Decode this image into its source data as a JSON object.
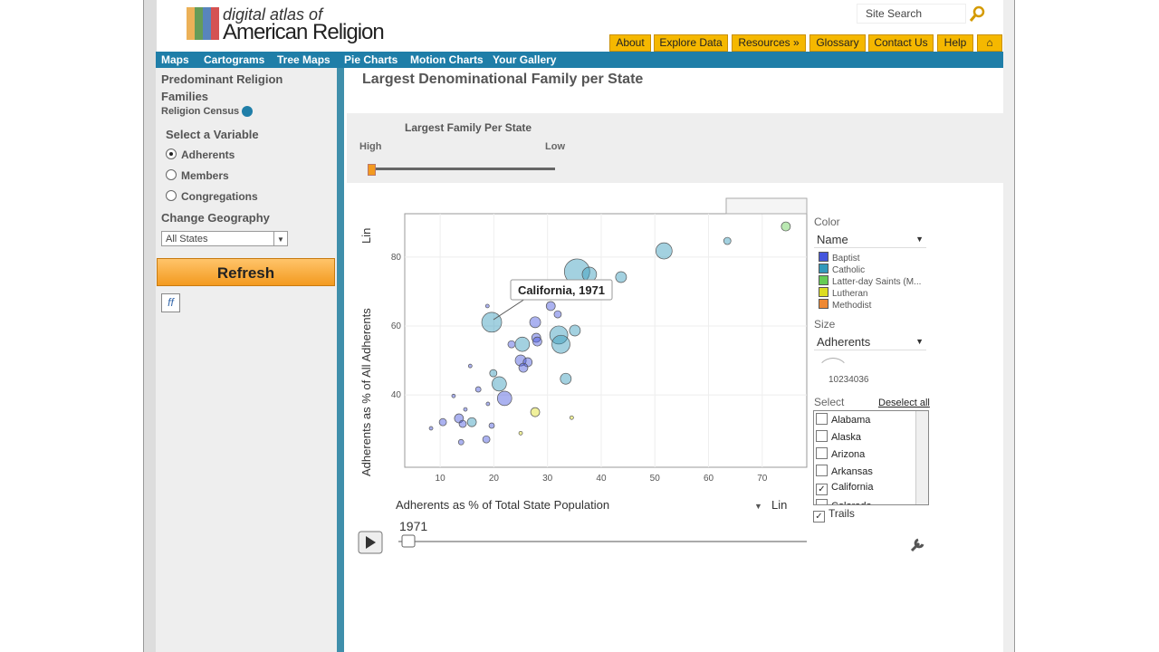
{
  "header": {
    "logo_line1": "digital atlas of",
    "logo_line2": "American Religion",
    "search_placeholder": "Site Search",
    "nav": [
      "About",
      "Explore Data",
      "Resources »",
      "Glossary",
      "Contact Us",
      "Help"
    ],
    "tabs": [
      "Maps",
      "Cartograms",
      "Tree Maps",
      "Pie Charts",
      "Motion Charts",
      "Your Gallery"
    ]
  },
  "sidebar": {
    "title": "Predominant Religion Families",
    "source": "Religion Census",
    "variable_heading": "Select a Variable",
    "variables": [
      {
        "label": "Adherents",
        "checked": true
      },
      {
        "label": "Members",
        "checked": false
      },
      {
        "label": "Congregations",
        "checked": false
      }
    ],
    "geography_heading": "Change Geography",
    "geography": "All States",
    "refresh": "Refresh"
  },
  "main": {
    "title": "Largest Denominational Family per State",
    "slider_title": "Largest Family Per State",
    "slider_high": "High",
    "slider_low": "Low"
  },
  "chart_data": {
    "type": "scatter",
    "x_label": "Adherents as % of Total State Population",
    "y_label": "Adherents as % of All Adherents",
    "x_scale": "Lin",
    "y_scale": "Lin",
    "xlim": [
      3.4,
      78.3
    ],
    "ylim": [
      19,
      92.6
    ],
    "xticks": [
      10,
      20,
      30,
      40,
      50,
      60,
      70
    ],
    "yticks": [
      40,
      60,
      80
    ],
    "grid": true,
    "size_max": 10234036,
    "tooltip": "California, 1971",
    "year": "1971",
    "series": [
      {
        "name": "Baptist",
        "color": "#4455dd",
        "x": [
          22,
          27.7,
          30.6,
          25,
          26.3,
          25.5,
          27.9,
          28.1,
          23.3,
          13.5,
          14.2,
          10.5,
          31.9,
          17.1,
          18.6,
          13.9,
          14.7,
          8.3,
          12.5,
          15.6,
          18.9,
          18.8,
          19.6
        ],
        "values": [
          39,
          61.1,
          65.8,
          50,
          49.5,
          47.9,
          56.6,
          55.5,
          54.7,
          33.2,
          31.6,
          32.1,
          63.4,
          41.6,
          27.1,
          26.3,
          35.8,
          30.3,
          39.7,
          48.4,
          37.4,
          65.8,
          31.1
        ],
        "sizes": [
          3300000,
          1900000,
          1300000,
          1900000,
          1300000,
          1300000,
          1300000,
          1300000,
          840000,
          1300000,
          840000,
          840000,
          840000,
          470000,
          840000,
          470000,
          210000,
          210000,
          210000,
          210000,
          210000,
          210000,
          470000
        ]
      },
      {
        "name": "Catholic",
        "color": "#3399bb",
        "x": [
          35.5,
          37.8,
          43.7,
          51.7,
          63.5,
          19.6,
          32.1,
          32.5,
          35.1,
          25.3,
          21,
          33.4,
          15.9,
          19.9
        ],
        "values": [
          75.8,
          75,
          74.2,
          81.8,
          84.7,
          61.1,
          57.4,
          54.7,
          58.7,
          54.7,
          43.2,
          44.7,
          32.1,
          46.3
        ],
        "sizes": [
          10234036,
          3300000,
          1900000,
          4200000,
          840000,
          6300000,
          5200000,
          5200000,
          1900000,
          3300000,
          3300000,
          1900000,
          1300000,
          840000
        ]
      },
      {
        "name": "Latter-day Saints (M...",
        "color": "#66cc55",
        "x": [
          74.4
        ],
        "values": [
          88.9
        ],
        "sizes": [
          1300000
        ]
      },
      {
        "name": "Lutheran",
        "color": "#dddd22",
        "x": [
          27.7,
          34.5,
          25
        ],
        "values": [
          35,
          33.4,
          28.9
        ],
        "sizes": [
          1300000,
          210000,
          210000
        ]
      },
      {
        "name": "Methodist",
        "color": "#ee8833",
        "x": [],
        "values": [],
        "sizes": []
      }
    ]
  },
  "controls": {
    "color_heading": "Color",
    "color_by": "Name",
    "size_heading": "Size",
    "size_by": "Adherents",
    "select_heading": "Select",
    "deselect": "Deselect all",
    "states": [
      {
        "name": "Alabama",
        "checked": false
      },
      {
        "name": "Alaska",
        "checked": false
      },
      {
        "name": "Arizona",
        "checked": false
      },
      {
        "name": "Arkansas",
        "checked": false
      },
      {
        "name": "California",
        "checked": true
      },
      {
        "name": "Colorado",
        "checked": false
      }
    ],
    "trails": "Trails"
  }
}
